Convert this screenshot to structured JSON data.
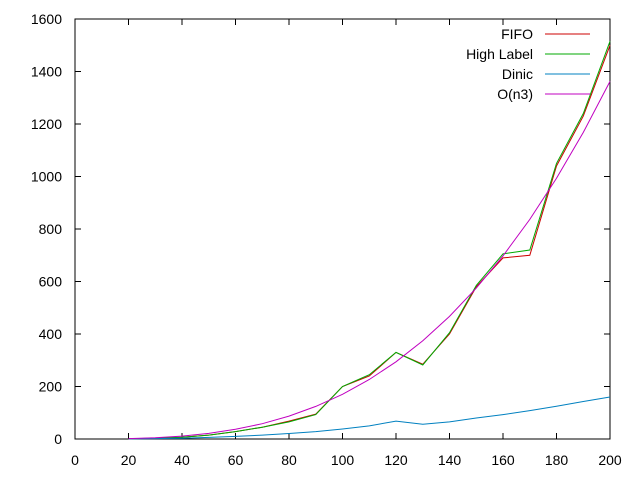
{
  "chart_data": {
    "type": "line",
    "title": "",
    "xlabel": "",
    "ylabel": "",
    "xlim": [
      0,
      200
    ],
    "ylim": [
      0,
      1600
    ],
    "xticks": [
      0,
      20,
      40,
      60,
      80,
      100,
      120,
      140,
      160,
      180,
      200
    ],
    "yticks": [
      0,
      200,
      400,
      600,
      800,
      1000,
      1200,
      1400,
      1600
    ],
    "grid": false,
    "legend_position": "top-right",
    "series": [
      {
        "name": "FIFO",
        "color": "#cc0000",
        "x": [
          20,
          30,
          40,
          50,
          60,
          70,
          80,
          90,
          100,
          110,
          120,
          130,
          140,
          150,
          160,
          170,
          180,
          190,
          200
        ],
        "y": [
          1,
          3,
          7,
          15,
          28,
          45,
          68,
          95,
          200,
          240,
          330,
          285,
          400,
          580,
          690,
          700,
          1040,
          1230,
          1500
        ]
      },
      {
        "name": "High Label",
        "color": "#00aa00",
        "x": [
          20,
          30,
          40,
          50,
          60,
          70,
          80,
          90,
          100,
          110,
          120,
          130,
          140,
          150,
          160,
          170,
          180,
          190,
          200
        ],
        "y": [
          1,
          3,
          7,
          15,
          28,
          45,
          65,
          93,
          200,
          245,
          330,
          282,
          405,
          585,
          705,
          720,
          1050,
          1240,
          1515
        ]
      },
      {
        "name": "Dinic",
        "color": "#0080c0",
        "x": [
          20,
          30,
          40,
          50,
          60,
          70,
          80,
          90,
          100,
          110,
          120,
          130,
          140,
          150,
          160,
          170,
          180,
          190,
          200
        ],
        "y": [
          0.5,
          1.5,
          3,
          6,
          10,
          15,
          21,
          28,
          38,
          50,
          68,
          56,
          65,
          80,
          93,
          108,
          125,
          143,
          160
        ]
      },
      {
        "name": "O(n3)",
        "color": "#c000c0",
        "x": [
          20,
          30,
          40,
          50,
          60,
          70,
          80,
          90,
          100,
          110,
          120,
          130,
          140,
          150,
          160,
          170,
          180,
          190,
          200
        ],
        "y": [
          1.4,
          4.6,
          10.9,
          21.3,
          36.8,
          58.4,
          87.2,
          124.1,
          170.3,
          226.6,
          294.2,
          374.1,
          467.2,
          574.7,
          697.4,
          836.5,
          993.1,
          1168.1,
          1362.4
        ]
      }
    ]
  }
}
